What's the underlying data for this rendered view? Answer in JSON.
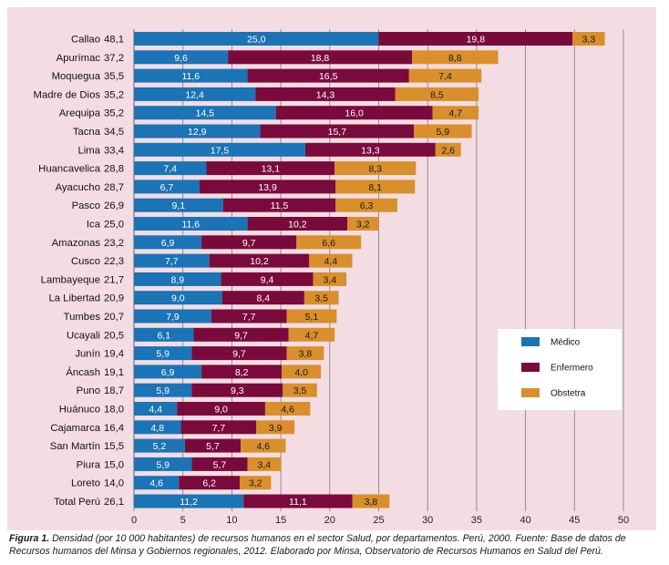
{
  "chart_data": {
    "type": "bar",
    "stacked": true,
    "orientation": "horizontal",
    "categories": [
      "Callao",
      "Apurímac",
      "Moquegua",
      "Madre de Dios",
      "Arequipa",
      "Tacna",
      "Lima",
      "Huancavelica",
      "Ayacucho",
      "Pasco",
      "Ica",
      "Amazonas",
      "Cusco",
      "Lambayeque",
      "La Libertad",
      "Tumbes",
      "Ucayali",
      "Junín",
      "Áncash",
      "Puno",
      "Huánuco",
      "Cajamarca",
      "San Martín",
      "Piura",
      "Loreto",
      "Total Perú"
    ],
    "totals": [
      "48,1",
      "37,2",
      "35,5",
      "35,2",
      "35,2",
      "34,5",
      "33,4",
      "28,8",
      "28,7",
      "26,9",
      "25,0",
      "23,2",
      "22,3",
      "21,7",
      "20,9",
      "20,7",
      "20,5",
      "19,4",
      "19,1",
      "18,7",
      "18,0",
      "16,4",
      "15,5",
      "15,0",
      "14,0",
      "26,1"
    ],
    "series": [
      {
        "name": "Médico",
        "color": "#1a74b6",
        "values": [
          25.0,
          9.6,
          11.6,
          12.4,
          14.5,
          12.9,
          17.5,
          7.4,
          6.7,
          9.1,
          11.6,
          6.9,
          7.7,
          8.9,
          9.0,
          7.9,
          6.1,
          5.9,
          6.9,
          5.9,
          4.4,
          4.8,
          5.2,
          5.9,
          4.6,
          11.2
        ]
      },
      {
        "name": "Enfermero",
        "color": "#7a0a3c",
        "values": [
          19.8,
          18.8,
          16.5,
          14.3,
          16.0,
          15.7,
          13.3,
          13.1,
          13.9,
          11.5,
          10.2,
          9.7,
          10.2,
          9.4,
          8.4,
          7.7,
          9.7,
          9.7,
          8.2,
          9.3,
          9.0,
          7.7,
          5.7,
          5.7,
          6.2,
          11.1
        ]
      },
      {
        "name": "Obstetra",
        "color": "#d98f2b",
        "values": [
          3.3,
          8.8,
          7.4,
          8.5,
          4.7,
          5.9,
          2.6,
          8.3,
          8.1,
          6.3,
          3.2,
          6.6,
          4.4,
          3.4,
          3.5,
          5.1,
          4.7,
          3.8,
          4.0,
          3.5,
          4.6,
          3.9,
          4.6,
          3.4,
          3.2,
          3.8
        ]
      }
    ],
    "value_labels": [
      [
        "25,0",
        "9,6",
        "11,6",
        "12,4",
        "14,5",
        "12,9",
        "17,5",
        "7,4",
        "6,7",
        "9,1",
        "11,6",
        "6,9",
        "7,7",
        "8,9",
        "9,0",
        "7,9",
        "6,1",
        "5,9",
        "6,9",
        "5,9",
        "4,4",
        "4,8",
        "5,2",
        "5,9",
        "4,6",
        "11,2"
      ],
      [
        "19,8",
        "18,8",
        "16,5",
        "14,3",
        "16,0",
        "15,7",
        "13,3",
        "13,1",
        "13,9",
        "11,5",
        "10,2",
        "9,7",
        "10,2",
        "9,4",
        "8,4",
        "7,7",
        "9,7",
        "9,7",
        "8,2",
        "9,3",
        "9,0",
        "7,7",
        "5,7",
        "5,7",
        "6,2",
        "11,1"
      ],
      [
        "3,3",
        "8,8",
        "7,4",
        "8,5",
        "4,7",
        "5,9",
        "2,6",
        "8,3",
        "8,1",
        "6,3",
        "3,2",
        "6,6",
        "4,4",
        "3,4",
        "3,5",
        "5,1",
        "4,7",
        "3,8",
        "4,0",
        "3,5",
        "4,6",
        "3,9",
        "4,6",
        "3,4",
        "3,2",
        "3,8"
      ]
    ],
    "xlim": [
      0,
      50
    ],
    "x_ticks": [
      "0",
      "5",
      "10",
      "15",
      "20",
      "25",
      "30",
      "35",
      "40",
      "45",
      "50"
    ],
    "grid": true,
    "legend": "right",
    "colors": {
      "background": "#f3dde3",
      "grid": "#7a7a7a"
    }
  },
  "caption": {
    "label": "Figura 1.",
    "text": "Densidad (por 10 000 habitantes) de recursos humanos en el sector Salud, por departamentos. Perú, 2000. Fuente: Base de datos de Recursos humanos del Minsa y Gobiernos regionales, 2012. Elaborado por Minsa, Observatorio de Recursos Humanos en Salud del Perú."
  }
}
